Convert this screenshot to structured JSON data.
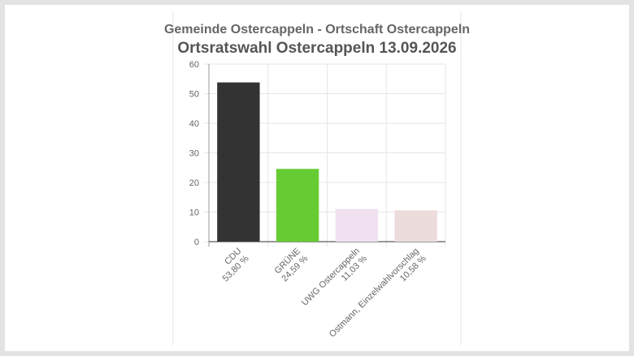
{
  "chart_data": {
    "type": "bar",
    "title": "Gemeinde Ostercappeln - Ortschaft Ostercappeln",
    "subtitle": "Ortsratswahl Ostercappeln 13.09.2026",
    "categories": [
      "CDU",
      "GRÜNE",
      "UWG Ostercappeln",
      "Ostmann, Einzelwahlvorschlag"
    ],
    "values": [
      53.8,
      24.59,
      11.03,
      10.58
    ],
    "value_labels": [
      "53,80 %",
      "24,59 %",
      "11,03 %",
      "10,58 %"
    ],
    "colors": [
      "#333333",
      "#66cc33",
      "#f0e0f0",
      "#ecdcdc"
    ],
    "ylim": [
      0,
      60
    ],
    "yticks": [
      0,
      10,
      20,
      30,
      40,
      50,
      60
    ],
    "grid": true
  }
}
